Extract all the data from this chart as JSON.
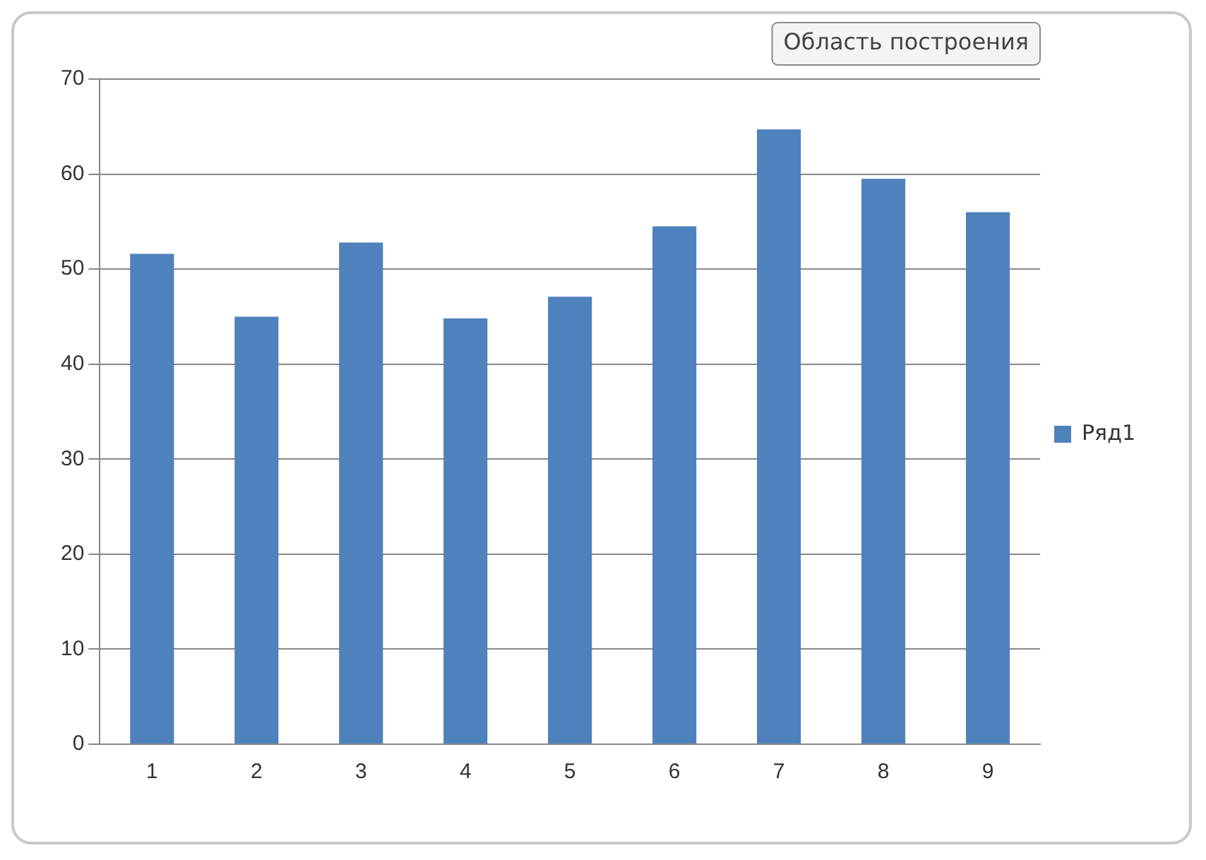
{
  "chart_data": {
    "type": "bar",
    "categories": [
      "1",
      "2",
      "3",
      "4",
      "5",
      "6",
      "7",
      "8",
      "9"
    ],
    "series": [
      {
        "name": "Ряд1",
        "color": "#4f81bd",
        "values": [
          51.6,
          45.0,
          52.8,
          44.8,
          47.1,
          54.5,
          64.7,
          59.5,
          56
        ]
      }
    ],
    "ylim": [
      0,
      70
    ],
    "yticks": [
      0,
      10,
      20,
      30,
      40,
      50,
      60,
      70
    ],
    "grid": "y",
    "legend": "right",
    "annotations": [
      "Область построения"
    ]
  }
}
